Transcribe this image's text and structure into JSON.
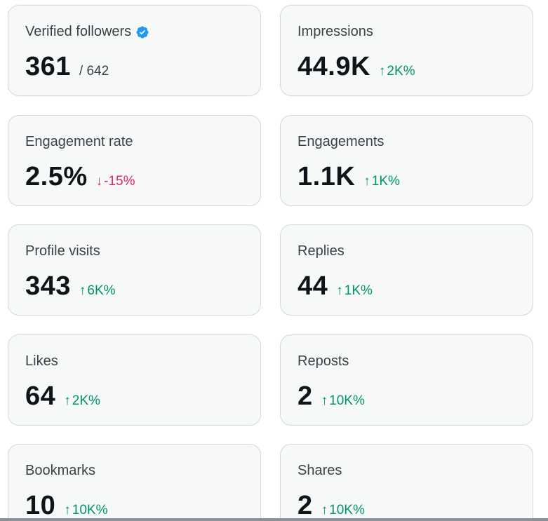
{
  "colors": {
    "card_bg": "#f7f9f9",
    "card_border": "#cfd9de",
    "positive": "#00936a",
    "negative": "#e0245e",
    "verified": "#1d9bf0"
  },
  "cards": [
    {
      "label": "Verified followers",
      "value": "361",
      "sub": "/ 642",
      "verified_icon": "verified-badge-icon"
    },
    {
      "label": "Impressions",
      "value": "44.9K",
      "delta": "2K%",
      "direction": "up"
    },
    {
      "label": "Engagement rate",
      "value": "2.5%",
      "delta": "-15%",
      "direction": "down"
    },
    {
      "label": "Engagements",
      "value": "1.1K",
      "delta": "1K%",
      "direction": "up"
    },
    {
      "label": "Profile visits",
      "value": "343",
      "delta": "6K%",
      "direction": "up"
    },
    {
      "label": "Replies",
      "value": "44",
      "delta": "1K%",
      "direction": "up"
    },
    {
      "label": "Likes",
      "value": "64",
      "delta": "2K%",
      "direction": "up"
    },
    {
      "label": "Reposts",
      "value": "2",
      "delta": "10K%",
      "direction": "up"
    },
    {
      "label": "Bookmarks",
      "value": "10",
      "delta": "10K%",
      "direction": "up"
    },
    {
      "label": "Shares",
      "value": "2",
      "delta": "10K%",
      "direction": "up"
    }
  ]
}
